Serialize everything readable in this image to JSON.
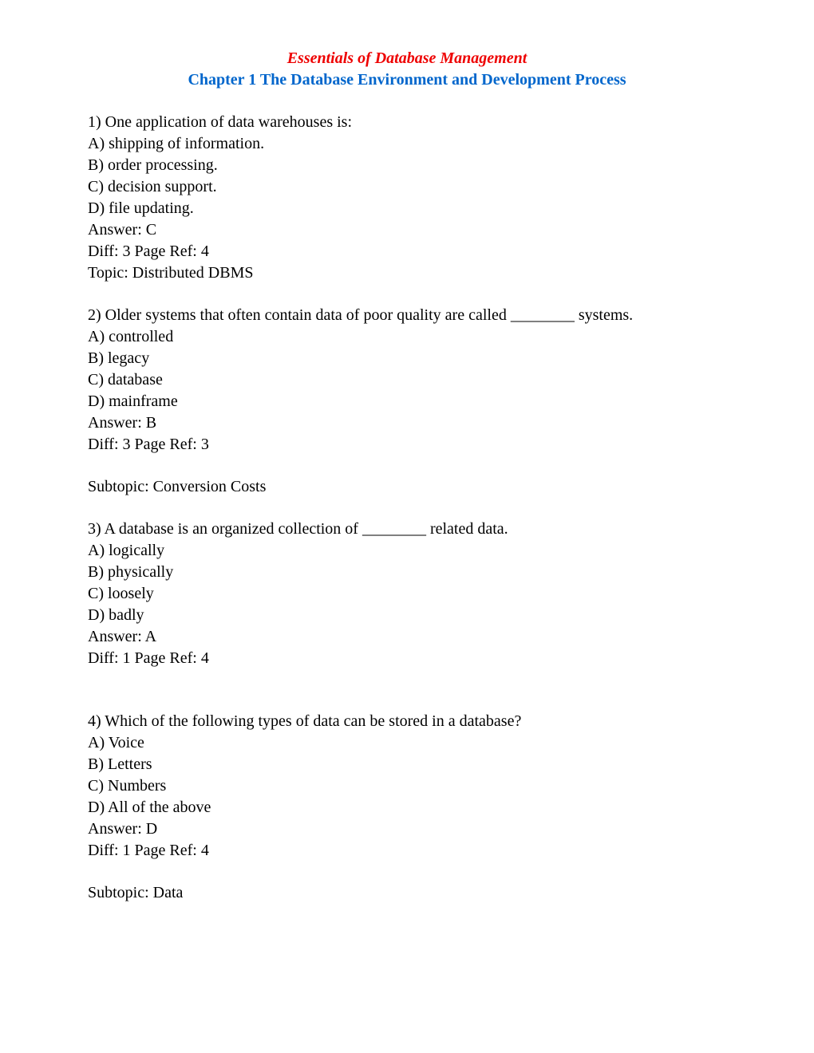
{
  "header": {
    "title": "Essentials of Database Management",
    "subtitle": "Chapter 1   The Database Environment and Development Process"
  },
  "questions": [
    {
      "number": "1",
      "text": "1) One application of data warehouses is:",
      "options": {
        "A": "A) shipping of information.",
        "B": "B) order processing.",
        "C": "C) decision support.",
        "D": "D) file updating."
      },
      "answer": "Answer:  C",
      "meta": "Diff: 3     Page Ref: 4",
      "topic": "Topic:  Distributed DBMS"
    },
    {
      "number": "2",
      "text": "2) Older systems that often contain data of poor quality are called ________ systems.",
      "options": {
        "A": "A) controlled",
        "B": "B) legacy",
        "C": "C) database",
        "D": "D) mainframe"
      },
      "answer": "Answer:  B",
      "meta": "Diff: 3     Page Ref: 3",
      "subtopic": "Subtopic:  Conversion Costs"
    },
    {
      "number": "3",
      "text": "3) A database is an organized collection of ________ related data.",
      "options": {
        "A": "A) logically",
        "B": "B) physically",
        "C": "C) loosely",
        "D": "D) badly"
      },
      "answer": "Answer:  A",
      "meta": "Diff: 1     Page Ref: 4"
    },
    {
      "number": "4",
      "text": "4) Which of the following types of data can be stored in a database?",
      "options": {
        "A": "A) Voice",
        "B": "B) Letters",
        "C": "C) Numbers",
        "D": "D) All of the above"
      },
      "answer": "Answer:  D",
      "meta": "Diff: 1     Page Ref: 4",
      "subtopic": "Subtopic:  Data"
    }
  ]
}
